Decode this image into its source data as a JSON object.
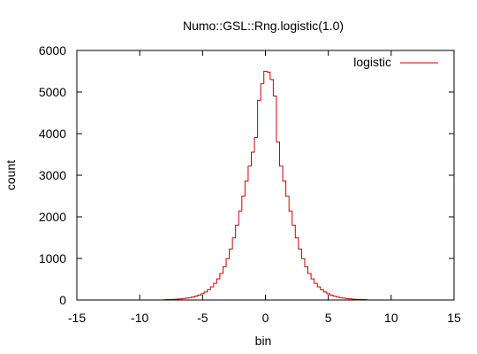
{
  "chart_data": {
    "type": "histogram",
    "title": "Numo::GSL::Rng.logistic(1.0)",
    "xlabel": "bin",
    "ylabel": "count",
    "xlim": [
      -15,
      15
    ],
    "ylim": [
      0,
      6000
    ],
    "xticks": [
      -15,
      -10,
      -5,
      0,
      5,
      10,
      15
    ],
    "yticks": [
      0,
      1000,
      2000,
      3000,
      4000,
      5000,
      6000
    ],
    "grid": false,
    "legend_position": "top-right",
    "series": [
      {
        "name": "logistic",
        "color": "#cc0000",
        "bin_width": 0.25,
        "x": [
          -8.0,
          -7.75,
          -7.5,
          -7.25,
          -7.0,
          -6.75,
          -6.5,
          -6.25,
          -6.0,
          -5.75,
          -5.5,
          -5.25,
          -5.0,
          -4.75,
          -4.5,
          -4.25,
          -4.0,
          -3.75,
          -3.5,
          -3.25,
          -3.0,
          -2.75,
          -2.5,
          -2.25,
          -2.0,
          -1.75,
          -1.5,
          -1.25,
          -1.0,
          -0.75,
          -0.5,
          -0.25,
          0.0,
          0.25,
          0.5,
          0.75,
          1.0,
          1.25,
          1.5,
          1.75,
          2.0,
          2.25,
          2.5,
          2.75,
          3.0,
          3.25,
          3.5,
          3.75,
          4.0,
          4.25,
          4.5,
          4.75,
          5.0,
          5.25,
          5.5,
          5.75,
          6.0,
          6.25,
          6.5,
          6.75,
          7.0,
          7.25,
          7.5,
          7.75,
          8.0
        ],
        "values": [
          8,
          10,
          13,
          16,
          21,
          27,
          34,
          44,
          57,
          72,
          93,
          119,
          152,
          194,
          248,
          316,
          401,
          507,
          639,
          800,
          994,
          1226,
          1495,
          1800,
          2136,
          2494,
          2861,
          3220,
          3554,
          3905,
          4800,
          5200,
          5500,
          5480,
          5300,
          4905,
          3800,
          3220,
          2861,
          2494,
          2136,
          1800,
          1495,
          1226,
          994,
          800,
          639,
          507,
          401,
          316,
          248,
          194,
          152,
          119,
          93,
          72,
          57,
          44,
          34,
          27,
          21,
          16,
          13,
          10,
          8
        ]
      }
    ]
  }
}
